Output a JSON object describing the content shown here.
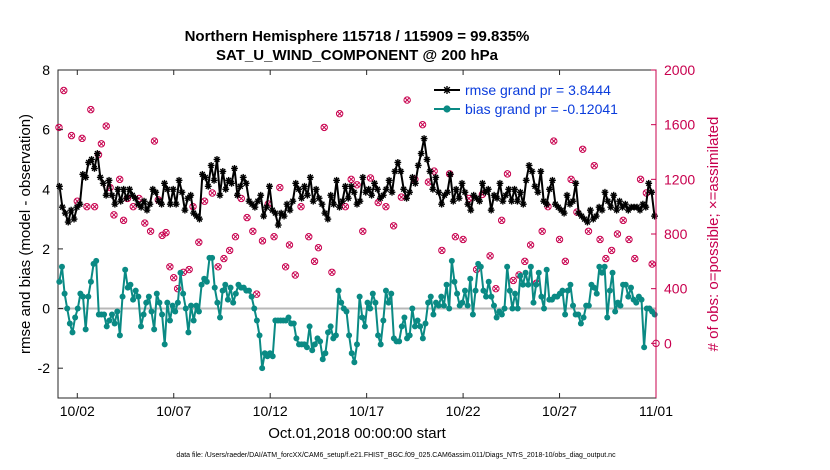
{
  "chart_data": {
    "type": "line",
    "title": "Northern Hemisphere 115718 / 115909 = 99.835%",
    "subtitle": "SAT_U_WIND_COMPONENT @ 200 hPa",
    "xlabel": "Oct.01,2018 00:00:00 start",
    "ylabel": "rmse and bias (model - observation)",
    "y2label": "# of obs: o=possible; ×=assimilated",
    "xlim": [
      0,
      31
    ],
    "ylim": [
      -3,
      8
    ],
    "y2lim": [
      -400,
      2000
    ],
    "xticks": [
      1,
      6,
      11,
      16,
      21,
      26,
      31
    ],
    "xtick_labels": [
      "10/02",
      "10/07",
      "10/12",
      "10/17",
      "10/22",
      "10/27",
      "11/01"
    ],
    "yticks": [
      -2,
      0,
      2,
      4,
      6,
      8
    ],
    "ytick_labels": [
      "-2",
      "0",
      "2",
      "4",
      "6",
      "8"
    ],
    "y2ticks": [
      0,
      400,
      800,
      1200,
      1600,
      2000
    ],
    "y2tick_labels": [
      "0",
      "400",
      "800",
      "1200",
      "1600",
      "2000"
    ],
    "zero_line": 0,
    "legend_position": "top-right",
    "series": [
      {
        "name": "rmse grand pr = 3.8444",
        "color": "#000000",
        "marker": "asterisk",
        "values": [
          4.1,
          3.4,
          3.2,
          2.9,
          3.3,
          3.0,
          3.4,
          3.5,
          4.5,
          4.4,
          4.9,
          5.0,
          4.7,
          5.2,
          4.4,
          4.2,
          3.8,
          4.3,
          3.8,
          3.5,
          4.0,
          3.6,
          4.0,
          3.7,
          4.0,
          3.8,
          3.7,
          3.5,
          3.4,
          3.6,
          3.3,
          3.5,
          4.0,
          3.9,
          3.6,
          3.5,
          4.2,
          4.0,
          3.5,
          4.0,
          3.5,
          4.3,
          3.9,
          3.3,
          3.7,
          3.8,
          3.2,
          3.1,
          3.0,
          4.5,
          4.4,
          4.1,
          4.8,
          4.3,
          5.0,
          3.8,
          4.6,
          4.0,
          4.3,
          4.2,
          4.7,
          3.8,
          4.1,
          4.4,
          4.2,
          3.6,
          3.5,
          3.4,
          3.6,
          3.8,
          3.1,
          3.4,
          4.1,
          3.3,
          3.2,
          2.8,
          3.2,
          3.1,
          3.5,
          3.3,
          3.6,
          4.2,
          4.0,
          3.7,
          4.1,
          3.8,
          4.4,
          3.6,
          4.0,
          3.7,
          3.5,
          3.2,
          3.0,
          3.8,
          3.5,
          4.3,
          3.4,
          3.6,
          4.1,
          3.7,
          4.1,
          3.9,
          3.5,
          3.6,
          4.4,
          3.9,
          4.0,
          3.8,
          4.2,
          4.0,
          3.7,
          3.8,
          4.0,
          4.3,
          3.9,
          4.6,
          4.9,
          4.6,
          4.0,
          3.7,
          3.9,
          4.4,
          4.2,
          4.8,
          5.2,
          5.7,
          5.0,
          4.6,
          4.0,
          4.4,
          3.9,
          3.5,
          3.8,
          3.9,
          4.5,
          3.6,
          4.0,
          3.7,
          4.2,
          3.9,
          3.5,
          3.3,
          3.8,
          3.7,
          3.6,
          4.2,
          3.9,
          4.0,
          3.3,
          3.8,
          3.7,
          4.2,
          3.6,
          3.8,
          4.0,
          3.6,
          4.0,
          3.6,
          3.9,
          3.5,
          4.3,
          4.8,
          4.6,
          4.1,
          3.9,
          4.6,
          3.6,
          3.5,
          4.0,
          4.3,
          3.5,
          3.4,
          3.3,
          3.2,
          3.8,
          3.5,
          3.6,
          4.2,
          3.2,
          3.1,
          3.0,
          2.9,
          3.3,
          3.0,
          3.1,
          3.4,
          3.3,
          3.9,
          3.6,
          3.4,
          3.8,
          3.3,
          3.6,
          3.4,
          3.5,
          3.3,
          3.4,
          3.4,
          3.4,
          3.3,
          3.5,
          3.4,
          4.2,
          3.9,
          3.1
        ]
      },
      {
        "name": "bias grand pr = -0.12041",
        "color": "#0a8a84",
        "marker": "circle",
        "values": [
          0.9,
          1.4,
          0.5,
          0.0,
          -0.5,
          -0.8,
          -0.3,
          0.0,
          0.5,
          0.4,
          -0.7,
          0.4,
          0.9,
          1.5,
          1.6,
          -0.2,
          -0.2,
          -0.2,
          -0.6,
          -0.4,
          -0.2,
          -0.5,
          -0.1,
          -0.9,
          0.4,
          1.3,
          0.7,
          0.8,
          0.3,
          0.6,
          0.4,
          -0.6,
          -0.2,
          0.2,
          0.4,
          -0.1,
          -0.7,
          0.5,
          0.2,
          -0.2,
          -1.2,
          0.2,
          -0.4,
          0.1,
          -0.1,
          0.2,
          1.2,
          0.5,
          0.0,
          -0.8,
          0.1,
          -0.4,
          0.1,
          -0.1,
          0.8,
          1.0,
          0.9,
          1.7,
          1.7,
          0.7,
          0.2,
          -0.3,
          0.6,
          0.8,
          0.3,
          0.7,
          0.2,
          0.5,
          0.8,
          0.7,
          0.7,
          0.6,
          0.6,
          0.4,
          0.0,
          -0.4,
          -0.9,
          -2.0,
          -1.5,
          -1.6,
          -1.5,
          -1.6,
          -0.4,
          -0.4,
          -0.4,
          -0.4,
          -0.4,
          -0.3,
          -0.5,
          -0.5,
          -1.0,
          -1.2,
          -1.2,
          -1.2,
          -1.3,
          -0.6,
          -1.4,
          -1.2,
          -1.0,
          -1.1,
          -1.7,
          -1.5,
          -0.8,
          -0.6,
          -1.0,
          -0.9,
          0.6,
          0.2,
          0.0,
          -0.1,
          -0.9,
          -1.5,
          -1.8,
          -1.2,
          0.4,
          -0.3,
          -0.6,
          0.2,
          0.0,
          0.5,
          0.2,
          -0.9,
          -1.2,
          -0.4,
          0.6,
          0.2,
          0.5,
          -1.0,
          -1.1,
          -1.1,
          -0.6,
          -0.3,
          -1.0,
          -0.9,
          0.0,
          -0.6,
          -0.4,
          -0.6,
          -1.0,
          -0.5,
          0.2,
          0.4,
          -0.2,
          0.2,
          0.1,
          0.4,
          0.1,
          0.8,
          0.0,
          1.6,
          0.9,
          0.5,
          0.1,
          0.2,
          0.6,
          0.1,
          1.0,
          -0.2,
          0.6,
          1.5,
          1.4,
          0.6,
          0.4,
          0.9,
          0.4,
          0.1,
          -0.3,
          -0.1,
          -0.2,
          0.0,
          1.4,
          0.6,
          0.0,
          0.5,
          0.0,
          1.1,
          0.8,
          1.2,
          0.8,
          1.4,
          0.2,
          0.8,
          1.2,
          0.4,
          0.0,
          1.3,
          0.3,
          0.3,
          0.4,
          0.4,
          0.5,
          0.6,
          -0.2,
          0.6,
          0.8,
          0.1,
          -0.2,
          -0.2,
          -0.5,
          -0.3,
          0.1,
          0.1,
          0.8,
          0.7,
          0.5,
          1.4,
          1.2,
          1.4,
          -0.3,
          0.6,
          1.2,
          -0.1,
          0.2,
          0.1,
          0.8,
          0.8,
          0.4,
          0.7,
          0.3,
          0.2,
          0.4,
          0.3,
          -1.3,
          0.0,
          0.0,
          -0.1,
          -0.2
        ]
      },
      {
        "name": "# of obs possible",
        "color": "#c8004e",
        "marker": "circle",
        "axis": "right",
        "x": [
          0.05,
          0.3,
          0.7,
          1.0,
          1.25,
          1.5,
          1.7,
          1.9,
          2.1,
          2.25,
          2.5,
          2.7,
          2.9,
          3.2,
          3.4,
          3.6,
          3.9,
          4.2,
          4.5,
          4.8,
          5.0,
          5.2,
          5.4,
          5.6,
          5.8,
          6.0,
          6.2,
          6.5,
          6.8,
          7.0,
          7.3,
          7.6,
          8.0,
          8.3,
          8.6,
          8.9,
          9.2,
          9.5,
          9.8,
          10.1,
          10.3,
          10.6,
          10.9,
          11.2,
          11.5,
          11.8,
          12.0,
          12.3,
          12.6,
          13.0,
          13.3,
          13.5,
          13.8,
          14.2,
          14.6,
          14.9,
          15.2,
          15.5,
          15.8,
          16.2,
          16.6,
          17.0,
          17.4,
          17.8,
          18.1,
          18.5,
          18.9,
          19.2,
          19.5,
          19.9,
          20.3,
          20.6,
          21.0,
          21.3,
          21.7,
          22.0,
          22.4,
          22.7,
          23.0,
          23.3,
          23.6,
          23.9,
          24.2,
          24.5,
          24.8,
          25.1,
          25.4,
          25.7,
          26.0,
          26.3,
          26.6,
          26.9,
          27.2,
          27.5,
          27.8,
          28.1,
          28.4,
          28.7,
          29.0,
          29.3,
          29.6,
          29.9,
          30.2,
          30.5,
          30.8
        ],
        "values": [
          1580,
          1850,
          1520,
          1040,
          1500,
          1000,
          1710,
          1000,
          1380,
          1460,
          1590,
          1140,
          940,
          1200,
          900,
          1060,
          1000,
          1060,
          880,
          820,
          1480,
          1050,
          790,
          810,
          560,
          480,
          400,
          520,
          540,
          1000,
          740,
          1040,
          1100,
          560,
          620,
          680,
          780,
          1060,
          920,
          820,
          360,
          750,
          1020,
          780,
          1140,
          560,
          720,
          500,
          1000,
          780,
          600,
          700,
          1580,
          520,
          1680,
          1000,
          1200,
          1160,
          820,
          1210,
          1030,
          1000,
          860,
          1070,
          1780,
          1200,
          1600,
          1180,
          1260,
          680,
          1240,
          780,
          760,
          1060,
          540,
          1090,
          640,
          400,
          900,
          1240,
          460,
          500,
          600,
          720,
          440,
          820,
          1000,
          1480,
          760,
          600,
          1200,
          960,
          1420,
          820,
          1300,
          760,
          620,
          680,
          800,
          900,
          760,
          620,
          1200,
          1100,
          580
        ]
      },
      {
        "name": "# of obs assimilated",
        "color": "#c8004e",
        "marker": "x",
        "axis": "right",
        "x": [
          0.05,
          0.3,
          0.7,
          1.0,
          1.25,
          1.5,
          1.7,
          1.9,
          2.1,
          2.25,
          2.5,
          2.7,
          2.9,
          3.2,
          3.4,
          3.6,
          3.9,
          4.2,
          4.5,
          4.8,
          5.0,
          5.2,
          5.4,
          5.6,
          5.8,
          6.0,
          6.2,
          6.5,
          6.8,
          7.0,
          7.3,
          7.6,
          8.0,
          8.3,
          8.6,
          8.9,
          9.2,
          9.5,
          9.8,
          10.1,
          10.3,
          10.6,
          10.9,
          11.2,
          11.5,
          11.8,
          12.0,
          12.3,
          12.6,
          13.0,
          13.3,
          13.5,
          13.8,
          14.2,
          14.6,
          14.9,
          15.2,
          15.5,
          15.8,
          16.2,
          16.6,
          17.0,
          17.4,
          17.8,
          18.1,
          18.5,
          18.9,
          19.2,
          19.5,
          19.9,
          20.3,
          20.6,
          21.0,
          21.3,
          21.7,
          22.0,
          22.4,
          22.7,
          23.0,
          23.3,
          23.6,
          23.9,
          24.2,
          24.5,
          24.8,
          25.1,
          25.4,
          25.7,
          26.0,
          26.3,
          26.6,
          26.9,
          27.2,
          27.5,
          27.8,
          28.1,
          28.4,
          28.7,
          29.0,
          29.3,
          29.6,
          29.9,
          30.2,
          30.5,
          30.8
        ],
        "values": [
          1580,
          1850,
          1520,
          1040,
          1500,
          1000,
          1710,
          1000,
          1380,
          1460,
          1590,
          1140,
          940,
          1200,
          900,
          1060,
          1000,
          1060,
          880,
          820,
          1480,
          1050,
          790,
          810,
          560,
          480,
          400,
          520,
          540,
          1000,
          740,
          1040,
          1100,
          560,
          620,
          680,
          780,
          1060,
          920,
          820,
          360,
          750,
          1020,
          780,
          1140,
          560,
          720,
          500,
          1000,
          780,
          600,
          700,
          1580,
          520,
          1680,
          1000,
          1200,
          1160,
          820,
          1210,
          1030,
          1000,
          860,
          1070,
          1780,
          1200,
          1600,
          1180,
          1260,
          680,
          1240,
          780,
          760,
          1060,
          540,
          1090,
          640,
          400,
          900,
          1240,
          460,
          500,
          600,
          720,
          440,
          820,
          1000,
          1480,
          760,
          600,
          1200,
          960,
          1420,
          820,
          1300,
          760,
          620,
          680,
          800,
          900,
          760,
          620,
          1200,
          1100,
          580
        ]
      }
    ],
    "extra_points": [
      {
        "name": "edge-point",
        "x": 31.0,
        "y2": 0,
        "color": "#c8004e",
        "marker": "circle"
      }
    ]
  },
  "footer": "data file: /Users/raeder/DAI/ATM_forcXX/CAM6_setup/f.e21.FHIST_BGC.f09_025.CAM6assim.011/Diags_NTrS_2018-10/obs_diag_output.nc"
}
